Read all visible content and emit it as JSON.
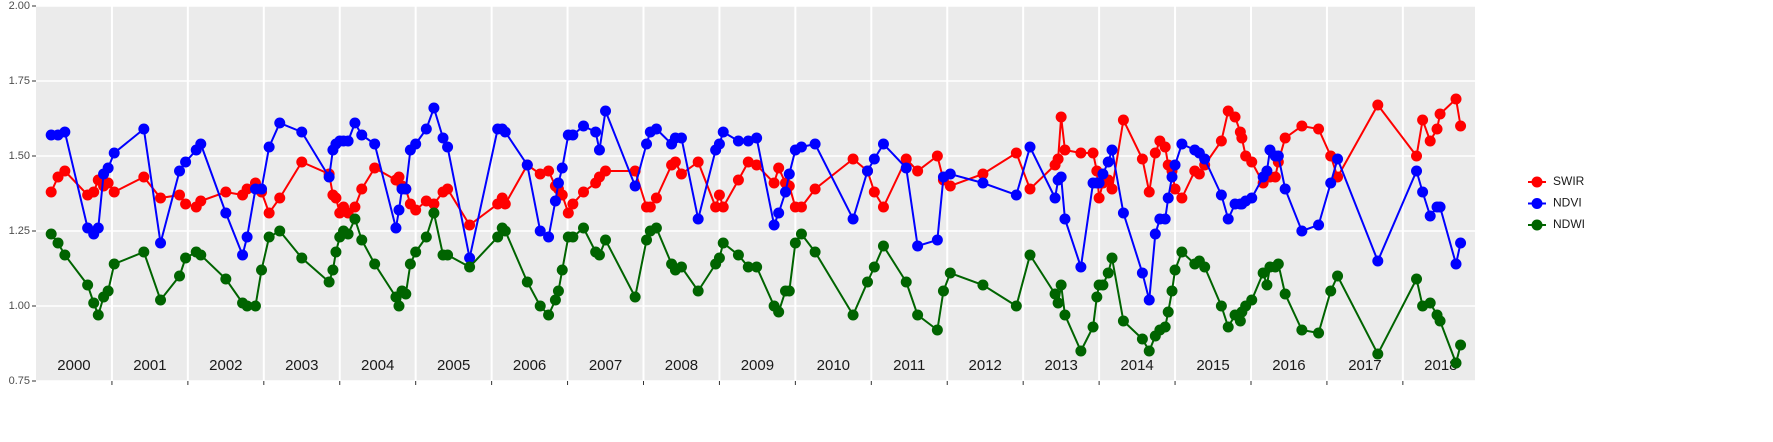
{
  "chart_data": {
    "type": "line",
    "x": [
      2000.2,
      2000.29,
      2000.38,
      2000.68,
      2000.76,
      2000.82,
      2000.89,
      2000.95,
      2001.03,
      2001.42,
      2001.64,
      2001.89,
      2001.97,
      2002.11,
      2002.17,
      2002.5,
      2002.72,
      2002.78,
      2002.89,
      2002.97,
      2003.07,
      2003.21,
      2003.5,
      2003.86,
      2003.91,
      2003.95,
      2004.0,
      2004.05,
      2004.11,
      2004.2,
      2004.29,
      2004.46,
      2004.74,
      2004.78,
      2004.82,
      2004.87,
      2004.93,
      2005.0,
      2005.14,
      2005.24,
      2005.36,
      2005.42,
      2005.71,
      2006.08,
      2006.14,
      2006.18,
      2006.47,
      2006.64,
      2006.75,
      2006.84,
      2006.88,
      2006.93,
      2007.01,
      2007.07,
      2007.21,
      2007.37,
      2007.42,
      2007.5,
      2007.89,
      2008.04,
      2008.09,
      2008.17,
      2008.37,
      2008.42,
      2008.5,
      2008.72,
      2008.95,
      2009.0,
      2009.05,
      2009.25,
      2009.38,
      2009.49,
      2009.72,
      2009.78,
      2009.87,
      2009.92,
      2010.0,
      2010.08,
      2010.26,
      2010.76,
      2010.95,
      2011.04,
      2011.16,
      2011.46,
      2011.61,
      2011.87,
      2011.95,
      2012.04,
      2012.47,
      2012.91,
      2013.09,
      2013.42,
      2013.46,
      2013.5,
      2013.55,
      2013.76,
      2013.92,
      2013.97,
      2014.0,
      2014.05,
      2014.12,
      2014.17,
      2014.32,
      2014.57,
      2014.66,
      2014.74,
      2014.8,
      2014.87,
      2014.91,
      2014.96,
      2015.0,
      2015.09,
      2015.26,
      2015.32,
      2015.39,
      2015.61,
      2015.7,
      2015.79,
      2015.86,
      2015.88,
      2015.93,
      2016.01,
      2016.16,
      2016.21,
      2016.25,
      2016.32,
      2016.36,
      2016.45,
      2016.67,
      2016.89,
      2017.05,
      2017.14,
      2017.67,
      2018.18,
      2018.26,
      2018.36,
      2018.45,
      2018.49,
      2018.7,
      2018.76
    ],
    "series": [
      {
        "name": "SWIR",
        "color": "#ff0000",
        "values": [
          1.38,
          1.43,
          1.45,
          1.37,
          1.38,
          1.42,
          1.4,
          1.41,
          1.38,
          1.43,
          1.36,
          1.37,
          1.34,
          1.33,
          1.35,
          1.38,
          1.37,
          1.39,
          1.41,
          1.38,
          1.31,
          1.36,
          1.48,
          1.44,
          1.37,
          1.36,
          1.31,
          1.33,
          1.31,
          1.33,
          1.39,
          1.46,
          1.42,
          1.43,
          1.4,
          1.39,
          1.34,
          1.32,
          1.35,
          1.34,
          1.38,
          1.39,
          1.27,
          1.34,
          1.36,
          1.34,
          1.47,
          1.44,
          1.45,
          1.4,
          1.39,
          1.37,
          1.31,
          1.34,
          1.38,
          1.41,
          1.43,
          1.45,
          1.45,
          1.33,
          1.33,
          1.36,
          1.47,
          1.48,
          1.44,
          1.48,
          1.33,
          1.37,
          1.33,
          1.42,
          1.48,
          1.47,
          1.41,
          1.46,
          1.41,
          1.4,
          1.33,
          1.33,
          1.39,
          1.49,
          1.45,
          1.38,
          1.33,
          1.49,
          1.45,
          1.5,
          1.42,
          1.4,
          1.44,
          1.51,
          1.39,
          1.47,
          1.49,
          1.63,
          1.52,
          1.51,
          1.51,
          1.45,
          1.36,
          1.41,
          1.42,
          1.39,
          1.62,
          1.49,
          1.38,
          1.51,
          1.55,
          1.53,
          1.47,
          1.45,
          1.39,
          1.36,
          1.45,
          1.44,
          1.47,
          1.55,
          1.65,
          1.63,
          1.58,
          1.56,
          1.5,
          1.48,
          1.41,
          1.44,
          1.43,
          1.43,
          1.48,
          1.56,
          1.6,
          1.59,
          1.5,
          1.43,
          1.67,
          1.5,
          1.62,
          1.55,
          1.59,
          1.64,
          1.69,
          1.6
        ]
      },
      {
        "name": "NDVI",
        "color": "#0000ff",
        "values": [
          1.57,
          1.57,
          1.58,
          1.26,
          1.24,
          1.26,
          1.44,
          1.46,
          1.51,
          1.59,
          1.21,
          1.45,
          1.48,
          1.52,
          1.54,
          1.31,
          1.17,
          1.23,
          1.39,
          1.39,
          1.53,
          1.61,
          1.58,
          1.43,
          1.52,
          1.54,
          1.55,
          1.55,
          1.55,
          1.61,
          1.57,
          1.54,
          1.26,
          1.32,
          1.39,
          1.39,
          1.52,
          1.54,
          1.59,
          1.66,
          1.56,
          1.53,
          1.16,
          1.59,
          1.59,
          1.58,
          1.47,
          1.25,
          1.23,
          1.35,
          1.41,
          1.46,
          1.57,
          1.57,
          1.6,
          1.58,
          1.52,
          1.65,
          1.4,
          1.54,
          1.58,
          1.59,
          1.54,
          1.56,
          1.56,
          1.29,
          1.52,
          1.54,
          1.58,
          1.55,
          1.55,
          1.56,
          1.27,
          1.31,
          1.38,
          1.44,
          1.52,
          1.53,
          1.54,
          1.29,
          1.45,
          1.49,
          1.54,
          1.46,
          1.2,
          1.22,
          1.43,
          1.44,
          1.41,
          1.37,
          1.53,
          1.36,
          1.42,
          1.43,
          1.29,
          1.13,
          1.41,
          1.41,
          1.41,
          1.44,
          1.48,
          1.52,
          1.31,
          1.11,
          1.02,
          1.24,
          1.29,
          1.29,
          1.36,
          1.43,
          1.47,
          1.54,
          1.52,
          1.51,
          1.49,
          1.37,
          1.29,
          1.34,
          1.34,
          1.34,
          1.35,
          1.36,
          1.43,
          1.45,
          1.52,
          1.5,
          1.5,
          1.39,
          1.25,
          1.27,
          1.41,
          1.49,
          1.15,
          1.45,
          1.38,
          1.3,
          1.33,
          1.33,
          1.14,
          1.21
        ]
      },
      {
        "name": "NDWI",
        "color": "#006400",
        "values": [
          1.24,
          1.21,
          1.17,
          1.07,
          1.01,
          0.97,
          1.03,
          1.05,
          1.14,
          1.18,
          1.02,
          1.1,
          1.16,
          1.18,
          1.17,
          1.09,
          1.01,
          1.0,
          1.0,
          1.12,
          1.23,
          1.25,
          1.16,
          1.08,
          1.12,
          1.18,
          1.23,
          1.25,
          1.24,
          1.29,
          1.22,
          1.14,
          1.03,
          1.0,
          1.05,
          1.04,
          1.14,
          1.18,
          1.23,
          1.31,
          1.17,
          1.17,
          1.13,
          1.23,
          1.26,
          1.25,
          1.08,
          1.0,
          0.97,
          1.02,
          1.05,
          1.12,
          1.23,
          1.23,
          1.26,
          1.18,
          1.17,
          1.22,
          1.03,
          1.22,
          1.25,
          1.26,
          1.14,
          1.12,
          1.13,
          1.05,
          1.14,
          1.16,
          1.21,
          1.17,
          1.13,
          1.13,
          1.0,
          0.98,
          1.05,
          1.05,
          1.21,
          1.24,
          1.18,
          0.97,
          1.08,
          1.13,
          1.2,
          1.08,
          0.97,
          0.92,
          1.05,
          1.11,
          1.07,
          1.0,
          1.17,
          1.04,
          1.01,
          1.07,
          0.97,
          0.85,
          0.93,
          1.03,
          1.07,
          1.07,
          1.11,
          1.16,
          0.95,
          0.89,
          0.85,
          0.9,
          0.92,
          0.93,
          0.98,
          1.05,
          1.12,
          1.18,
          1.14,
          1.15,
          1.13,
          1.0,
          0.93,
          0.97,
          0.95,
          0.98,
          1.0,
          1.02,
          1.11,
          1.07,
          1.13,
          1.13,
          1.14,
          1.04,
          0.92,
          0.91,
          1.05,
          1.1,
          0.84,
          1.09,
          1.0,
          1.01,
          0.97,
          0.95,
          0.81,
          0.87
        ]
      }
    ],
    "xlim": [
      2000,
      2018.95
    ],
    "xticks": [
      2001,
      2002,
      2003,
      2004,
      2005,
      2006,
      2007,
      2008,
      2009,
      2010,
      2011,
      2012,
      2013,
      2014,
      2015,
      2016,
      2017,
      2018
    ],
    "year_labels": [
      "2000",
      "2001",
      "2002",
      "2003",
      "2004",
      "2005",
      "2006",
      "2007",
      "2008",
      "2009",
      "2010",
      "2011",
      "2012",
      "2013",
      "2014",
      "2015",
      "2016",
      "2017",
      "2018"
    ],
    "ylim": [
      0.75,
      2.0
    ],
    "yticks": [
      0.75,
      {
        "value": 1,
        "label": "1.00"
      },
      1.25,
      {
        "value": 1.5,
        "label": "1.50"
      },
      1.75,
      {
        "value": 2,
        "label": "2.00"
      }
    ],
    "grid": true,
    "legend": "right"
  }
}
